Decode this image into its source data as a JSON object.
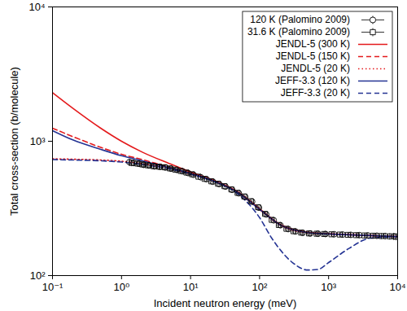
{
  "chart_data": {
    "type": "line",
    "x_label": "Incident neutron energy (meV)",
    "y_label": "Total cross-section (b/molecule)",
    "log": true,
    "grid": false,
    "legend": "upper right",
    "xlim": [
      0.1,
      10000
    ],
    "ylim": [
      100,
      10000
    ],
    "xticks": [
      {
        "value": 0.1,
        "label": "10⁻¹"
      },
      {
        "value": 1,
        "label": "10⁰"
      },
      {
        "value": 10,
        "label": "10¹"
      },
      {
        "value": 100,
        "label": "10²"
      },
      {
        "value": 1000,
        "label": "10³"
      },
      {
        "value": 10000,
        "label": "10⁴"
      }
    ],
    "yticks": [
      {
        "value": 100,
        "label": "10²"
      },
      {
        "value": 1000,
        "label": "10³"
      },
      {
        "value": 10000,
        "label": "10⁴"
      }
    ],
    "series": [
      {
        "name": "120 K (Palomino 2009)",
        "type": "scatter",
        "color": "#000000",
        "marker": "circle",
        "x": [
          1.3,
          1.5,
          1.8,
          2.1,
          2.5,
          3,
          3.6,
          4.3,
          5.2,
          6.3,
          7.6,
          9.2,
          11,
          14,
          17,
          21,
          26,
          32,
          40,
          50,
          62,
          78,
          98,
          125,
          160,
          200,
          260,
          330,
          420,
          540,
          700,
          900,
          1200,
          1600,
          2100,
          2800,
          3700,
          5000,
          6600,
          8800
        ],
        "values": [
          700,
          690,
          680,
          668,
          660,
          650,
          645,
          638,
          625,
          612,
          598,
          580,
          563,
          540,
          522,
          500,
          480,
          460,
          435,
          410,
          385,
          355,
          320,
          285,
          258,
          237,
          222,
          213,
          208,
          206,
          205,
          204,
          203,
          202,
          201,
          200,
          199,
          198,
          197,
          196
        ],
        "errors": [
          40,
          38,
          36,
          34,
          32,
          30,
          28,
          26,
          24,
          22,
          20,
          18,
          16,
          14,
          12,
          11,
          10,
          9,
          9,
          8,
          8,
          8,
          7,
          7,
          7,
          7,
          7,
          7,
          7,
          7,
          7,
          8,
          8,
          8,
          9,
          9,
          10,
          10,
          11,
          12
        ]
      },
      {
        "name": "31.6 K (Palomino 2009)",
        "type": "scatter",
        "color": "#000000",
        "marker": "square",
        "x": [
          1.4,
          1.7,
          2,
          2.4,
          2.9,
          3.5,
          4.2,
          5,
          6,
          7.2,
          8.7,
          10.5,
          13,
          16,
          20,
          25,
          31,
          39,
          48,
          60,
          75,
          95,
          120,
          150,
          190,
          245,
          310,
          400,
          520,
          670,
          860,
          1100,
          1450,
          1900,
          2500,
          3300,
          4400,
          5800,
          7700,
          9500
        ],
        "values": [
          690,
          682,
          672,
          662,
          652,
          646,
          640,
          628,
          615,
          601,
          585,
          568,
          545,
          525,
          503,
          483,
          463,
          438,
          413,
          388,
          358,
          323,
          288,
          260,
          238,
          223,
          214,
          209,
          206,
          205,
          204,
          203,
          202,
          201,
          200,
          199,
          198,
          197,
          196,
          195
        ],
        "errors": [
          38,
          36,
          34,
          32,
          30,
          28,
          26,
          24,
          22,
          20,
          18,
          16,
          14,
          12,
          11,
          10,
          9,
          9,
          8,
          8,
          8,
          7,
          7,
          7,
          7,
          7,
          7,
          7,
          7,
          7,
          7,
          8,
          8,
          8,
          9,
          9,
          10,
          10,
          11,
          12
        ]
      },
      {
        "name": "JENDL-5 (300 K)",
        "type": "line",
        "color": "#e41a1c",
        "line_style": "solid",
        "x": [
          0.1,
          0.2,
          0.5,
          1,
          2,
          5,
          10,
          20,
          50,
          100,
          200,
          500,
          1000,
          3000,
          10000
        ],
        "values": [
          2300,
          1750,
          1250,
          1000,
          830,
          680,
          590,
          520,
          415,
          315,
          240,
          210,
          205,
          200,
          195
        ]
      },
      {
        "name": "JENDL-5 (150 K)",
        "type": "line",
        "color": "#e41a1c",
        "line_style": "dashed",
        "x": [
          0.1,
          0.2,
          0.5,
          1,
          2,
          5,
          10,
          20,
          50,
          100,
          200,
          500,
          1000,
          3000,
          10000
        ],
        "values": [
          1250,
          1080,
          900,
          800,
          730,
          640,
          580,
          515,
          412,
          312,
          238,
          209,
          204,
          200,
          195
        ]
      },
      {
        "name": "JENDL-5 (20 K)",
        "type": "line",
        "color": "#e41a1c",
        "line_style": "dotted",
        "x": [
          0.1,
          0.2,
          0.5,
          1,
          2,
          5,
          10,
          20,
          50,
          100,
          200,
          500,
          1000,
          3000,
          10000
        ],
        "values": [
          740,
          735,
          725,
          710,
          680,
          625,
          570,
          512,
          410,
          310,
          237,
          208,
          204,
          200,
          195
        ]
      },
      {
        "name": "JEFF-3.3 (120 K)",
        "type": "line",
        "color": "#253494",
        "line_style": "solid",
        "x": [
          0.1,
          0.2,
          0.5,
          1,
          2,
          5,
          10,
          20,
          50,
          100,
          200,
          500,
          1000,
          3000,
          10000
        ],
        "values": [
          1200,
          1020,
          870,
          780,
          715,
          635,
          575,
          514,
          411,
          311,
          238,
          209,
          204,
          200,
          195
        ]
      },
      {
        "name": "JEFF-3.3 (20 K)",
        "type": "line",
        "color": "#253494",
        "line_style": "dashed",
        "x": [
          0.1,
          0.2,
          0.5,
          1,
          2,
          5,
          10,
          20,
          50,
          70,
          100,
          150,
          200,
          300,
          500,
          700,
          1000,
          2000,
          4000,
          10000
        ],
        "values": [
          730,
          725,
          715,
          700,
          672,
          622,
          568,
          510,
          400,
          340,
          270,
          190,
          155,
          125,
          110,
          111,
          125,
          160,
          190,
          195
        ]
      }
    ]
  }
}
